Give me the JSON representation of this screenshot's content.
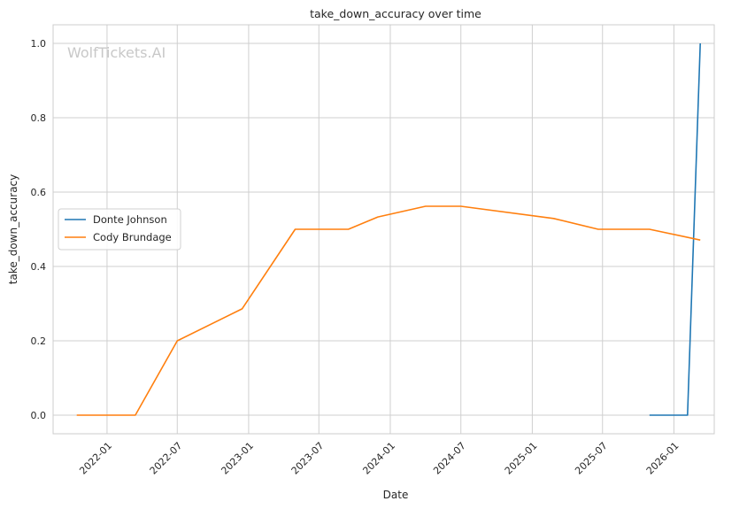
{
  "title": "take_down_accuracy over time",
  "watermark": "WolfTickets.AI",
  "chart_data": {
    "type": "line",
    "title": "take_down_accuracy over time",
    "xlabel": "Date",
    "ylabel": "take_down_accuracy",
    "x_ticks": [
      "2022-01",
      "2022-07",
      "2023-01",
      "2023-07",
      "2024-01",
      "2024-07",
      "2025-01",
      "2025-07",
      "2026-01"
    ],
    "y_ticks": [
      "0.0",
      "0.2",
      "0.4",
      "0.6",
      "0.8",
      "1.0"
    ],
    "xlim": [
      "2021-08-15",
      "2026-04-15"
    ],
    "ylim": [
      -0.05,
      1.05
    ],
    "grid": true,
    "legend_position": "center-left",
    "series": [
      {
        "name": "Donte Johnson",
        "color": "#1f77b4",
        "points": [
          {
            "x": "2025-10-30",
            "y": 0.0
          },
          {
            "x": "2026-02-05",
            "y": 0.0
          },
          {
            "x": "2026-03-10",
            "y": 1.0
          }
        ]
      },
      {
        "name": "Cody Brundage",
        "color": "#ff7f0e",
        "points": [
          {
            "x": "2021-10-15",
            "y": 0.0
          },
          {
            "x": "2022-03-15",
            "y": 0.0
          },
          {
            "x": "2022-07-01",
            "y": 0.2
          },
          {
            "x": "2022-12-15",
            "y": 0.286
          },
          {
            "x": "2023-05-01",
            "y": 0.5
          },
          {
            "x": "2023-09-15",
            "y": 0.5
          },
          {
            "x": "2023-11-30",
            "y": 0.533
          },
          {
            "x": "2024-04-01",
            "y": 0.562
          },
          {
            "x": "2024-07-01",
            "y": 0.562
          },
          {
            "x": "2025-02-25",
            "y": 0.529
          },
          {
            "x": "2025-06-20",
            "y": 0.5
          },
          {
            "x": "2025-10-30",
            "y": 0.5
          },
          {
            "x": "2026-03-10",
            "y": 0.471
          }
        ]
      }
    ]
  }
}
